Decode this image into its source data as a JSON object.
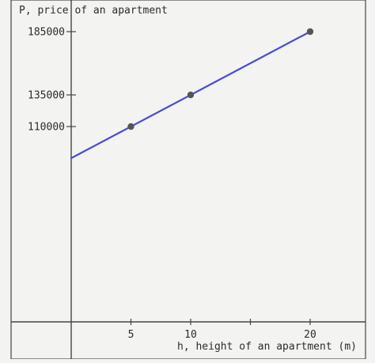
{
  "chart_data": {
    "type": "line",
    "ylabel": "P, price of an apartment",
    "xlabel": "h, height of an apartment (m)",
    "x_ticks": [
      5,
      10,
      20
    ],
    "x_tick_labels": [
      "5",
      "10",
      "20"
    ],
    "y_ticks": [
      110000,
      135000,
      185000
    ],
    "y_tick_labels": [
      "110000",
      "135000",
      "185000"
    ],
    "series": [
      {
        "line_x": [
          0,
          20
        ],
        "line_y": [
          85000,
          185000
        ],
        "points": [
          {
            "x": 5,
            "y": 110000
          },
          {
            "x": 10,
            "y": 135000
          },
          {
            "x": 20,
            "y": 185000
          }
        ],
        "color": "#4a4ad8"
      }
    ],
    "point_color": "#555555",
    "grid": false
  }
}
